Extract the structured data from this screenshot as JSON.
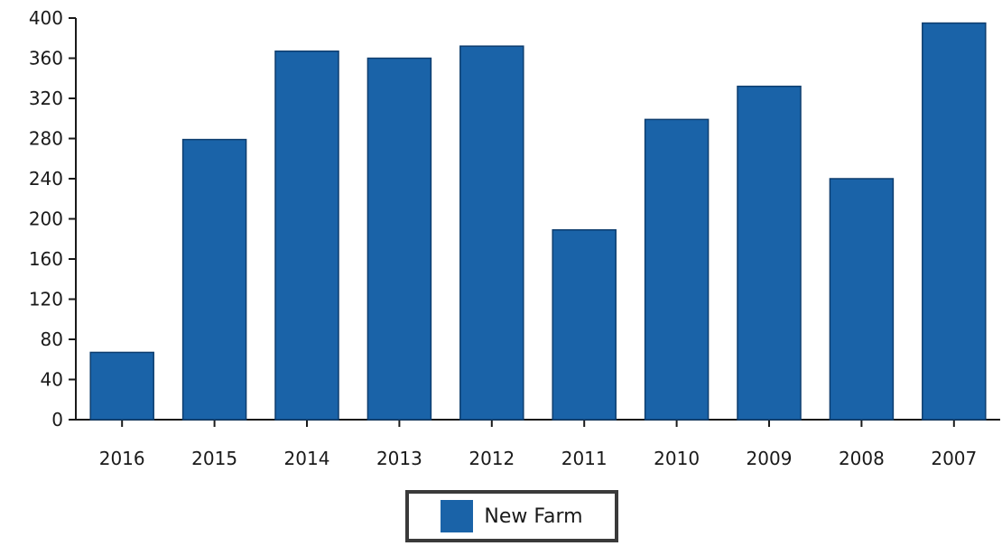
{
  "chart_data": {
    "type": "bar",
    "categories": [
      "2016",
      "2015",
      "2014",
      "2013",
      "2012",
      "2011",
      "2010",
      "2009",
      "2008",
      "2007"
    ],
    "series": [
      {
        "name": "New Farm",
        "values": [
          67,
          279,
          367,
          360,
          372,
          189,
          299,
          332,
          240,
          395
        ]
      }
    ],
    "ylim": [
      0,
      400
    ],
    "yticks": [
      0,
      40,
      80,
      120,
      160,
      200,
      240,
      280,
      320,
      360,
      400
    ],
    "grid": false,
    "legend_position": "bottom-center",
    "colors": {
      "bar": "#1a63a8",
      "bar_edge": "#0d3d6e",
      "axis": "#1a1a1a"
    }
  }
}
